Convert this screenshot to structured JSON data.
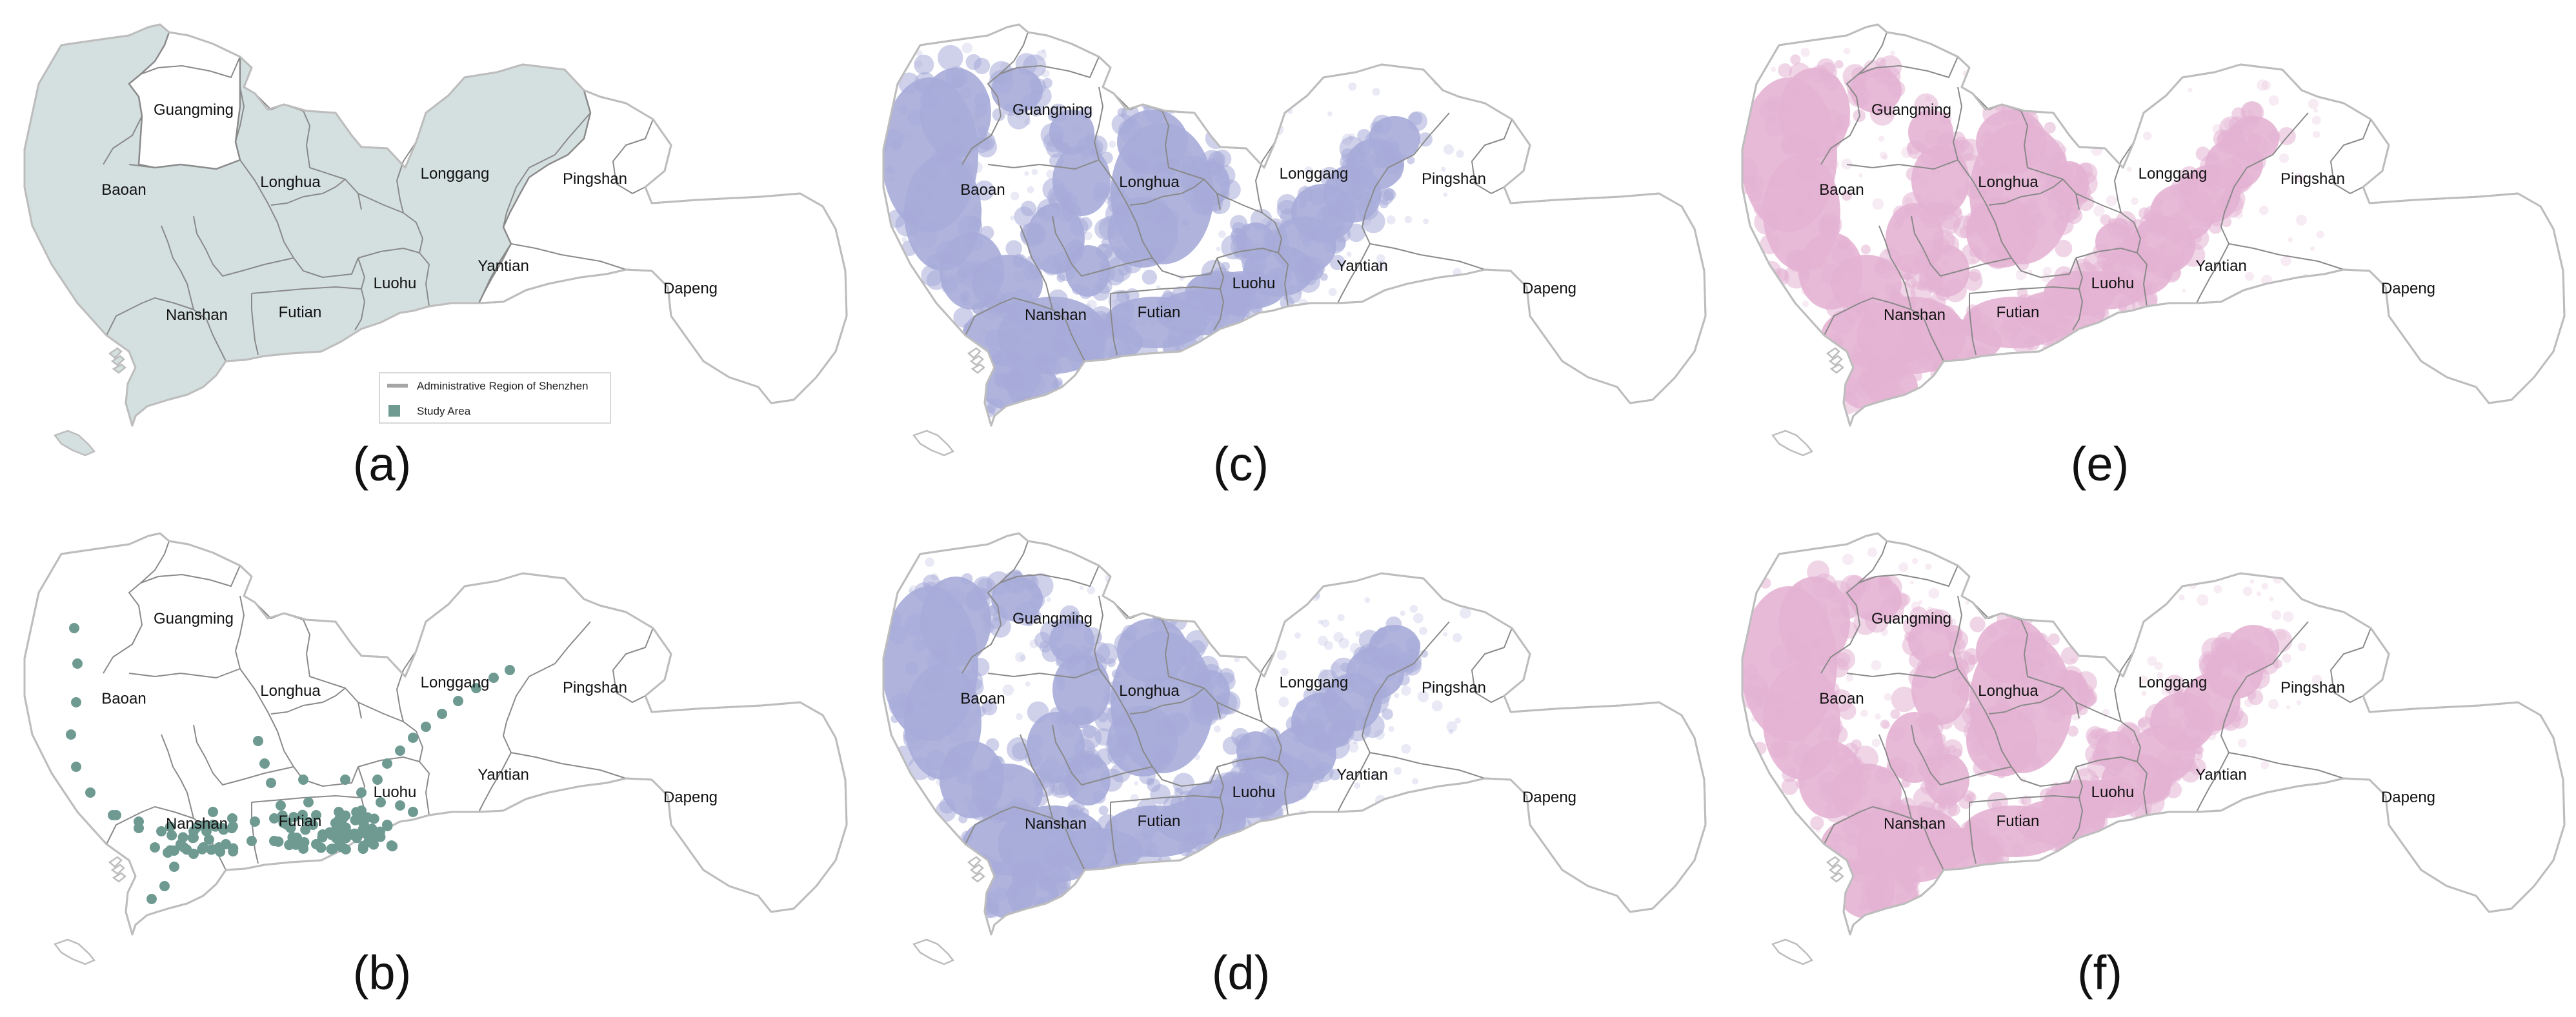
{
  "colors": {
    "outline": "#bdbdbd",
    "district_border": "#8a8a8a",
    "study_fill": "#d4e0df",
    "station": "#6e9a92",
    "blue_density": "#a7acd9",
    "pink_density": "#e4b3d3"
  },
  "districts": [
    {
      "id": "guangming",
      "label": "Guangming"
    },
    {
      "id": "baoan",
      "label": "Baoan"
    },
    {
      "id": "longhua",
      "label": "Longhua"
    },
    {
      "id": "longgang",
      "label": "Longgang"
    },
    {
      "id": "pingshan",
      "label": "Pingshan"
    },
    {
      "id": "nanshan",
      "label": "Nanshan"
    },
    {
      "id": "futian",
      "label": "Futian"
    },
    {
      "id": "luohu",
      "label": "Luohu"
    },
    {
      "id": "yantian",
      "label": "Yantian"
    },
    {
      "id": "dapeng",
      "label": "Dapeng"
    }
  ],
  "panels": [
    {
      "id": "a",
      "letter": "(a)",
      "type": "study-area"
    },
    {
      "id": "c",
      "letter": "(c)",
      "type": "density-blue"
    },
    {
      "id": "e",
      "letter": "(e)",
      "type": "density-pink"
    },
    {
      "id": "b",
      "letter": "(b)",
      "type": "stations"
    },
    {
      "id": "d",
      "letter": "(d)",
      "type": "density-blue"
    },
    {
      "id": "f",
      "letter": "(f)",
      "type": "density-pink"
    }
  ],
  "legend": {
    "line_label": "Administrative Region of Shenzhen",
    "area_label": "Study Area"
  }
}
